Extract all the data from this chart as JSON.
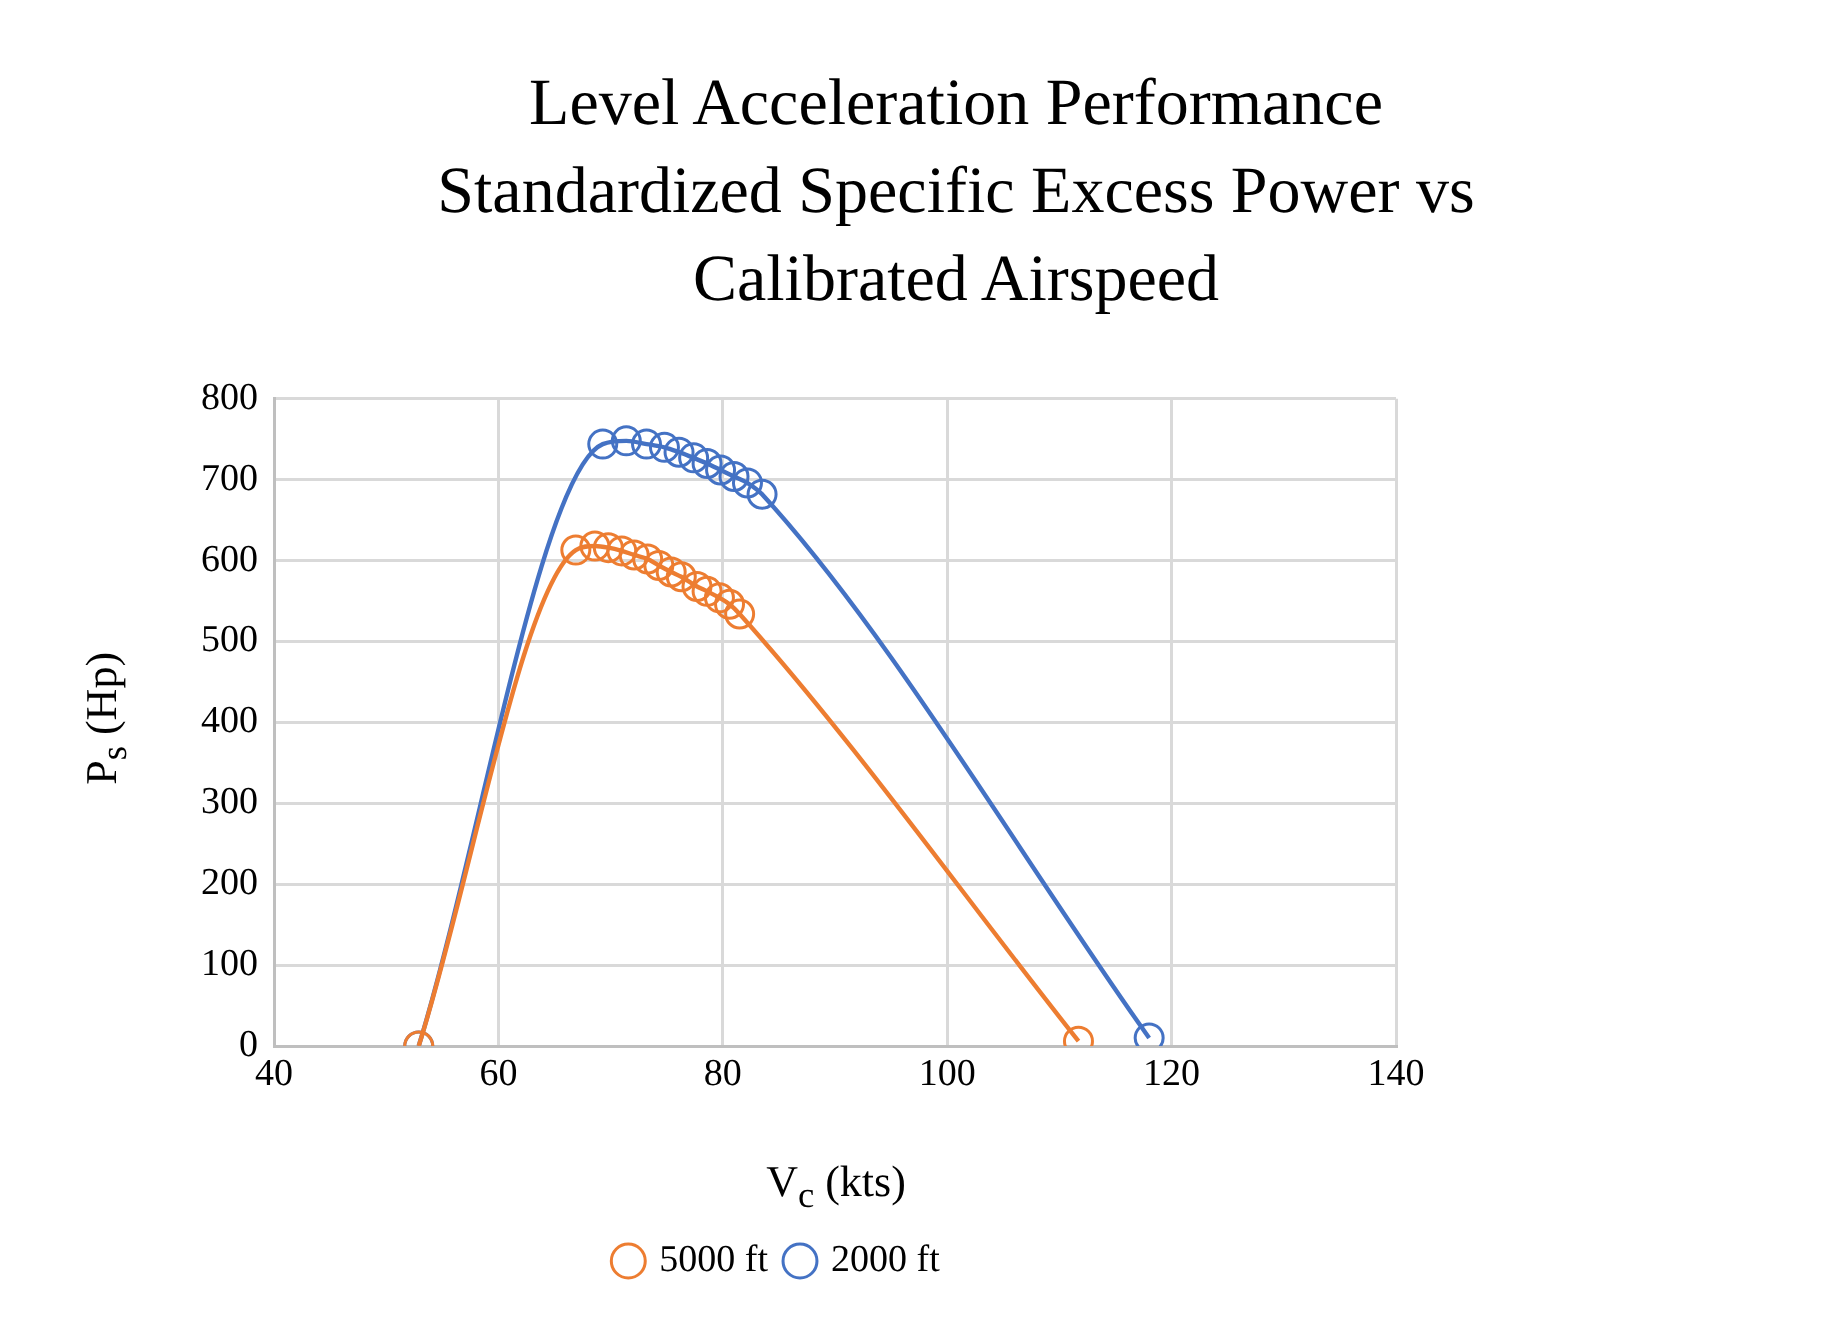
{
  "chart_data": {
    "type": "line",
    "title": "Level Acceleration Performance Standardized Specific Excess Power vs Calibrated Airspeed",
    "xlabel": "V$_{c}$ (kts)",
    "ylabel": "P$_{s}$ (Hp)",
    "xlim": [
      40,
      140
    ],
    "xticks": [
      40,
      60,
      80,
      100,
      120,
      140
    ],
    "ylim": [
      0,
      800
    ],
    "yticks": [
      0,
      100,
      200,
      300,
      400,
      500,
      600,
      700,
      800
    ],
    "grid": true,
    "legend": "bottom",
    "marker": "circle",
    "line_style": "solid",
    "series": [
      {
        "name": "5000 ft",
        "color": "#ed7d31",
        "x": [
          52.9,
          66.9,
          68.6,
          69.8,
          71.0,
          72.1,
          73.3,
          74.3,
          75.4,
          76.3,
          77.7,
          78.6,
          79.7,
          80.6,
          81.5,
          111.7
        ],
        "values": [
          0,
          613,
          618,
          616,
          612,
          607,
          602,
          594,
          586,
          580,
          568,
          562,
          554,
          546,
          534,
          6
        ]
      },
      {
        "name": "2000 ft",
        "color": "#4472c4",
        "x": [
          52.9,
          69.3,
          71.4,
          73.2,
          74.8,
          76.1,
          77.4,
          78.6,
          79.8,
          81.0,
          82.2,
          83.5,
          118.0
        ],
        "values": [
          0,
          744,
          748,
          744,
          740,
          734,
          727,
          720,
          712,
          704,
          696,
          682,
          10
        ]
      }
    ]
  }
}
